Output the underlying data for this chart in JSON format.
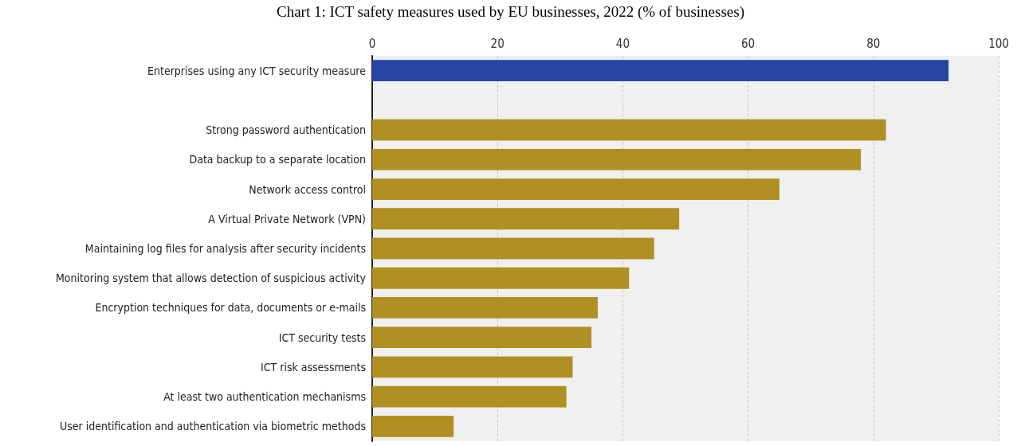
{
  "chart_data": {
    "type": "bar",
    "orientation": "horizontal",
    "title": "Chart 1: ICT safety measures used by EU businesses, 2022 (% of businesses)",
    "categories": [
      "Enterprises using any ICT security measure",
      null,
      "Strong password authentication",
      "Data backup to a separate location",
      "Network access control",
      "A Virtual Private Network (VPN)",
      "Maintaining log files for analysis after security incidents",
      "Monitoring system that allows detection of suspicious activity",
      "Encryption techniques for data, documents or e-mails",
      "ICT security tests",
      "ICT risk assessments",
      "At least two authentication mechanisms",
      "User identification and authentication via biometric methods"
    ],
    "values": [
      92,
      null,
      82,
      78,
      65,
      49,
      45,
      41,
      36,
      35,
      32,
      31,
      13
    ],
    "colors": [
      "#2845a5",
      null,
      "#b09023",
      "#b09023",
      "#b09023",
      "#b09023",
      "#b09023",
      "#b09023",
      "#b09023",
      "#b09023",
      "#b09023",
      "#b09023",
      "#b09023"
    ],
    "xlim": [
      0,
      100
    ],
    "xticks": [
      0,
      20,
      40,
      60,
      80,
      100
    ],
    "grid": "x"
  }
}
